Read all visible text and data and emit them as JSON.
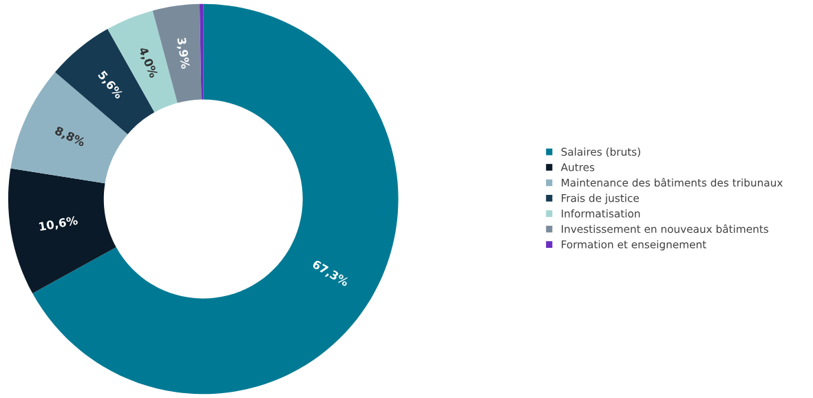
{
  "chart_data": {
    "type": "donut",
    "categories": [
      "Salaires (bruts)",
      "Autres",
      "Maintenance des bâtiments des tribunaux",
      "Frais de justice",
      "Informatisation",
      "Investissement en nouveaux bâtiments",
      "Formation et enseignement"
    ],
    "values": [
      67.3,
      10.6,
      8.8,
      5.6,
      4.0,
      3.9,
      0.3
    ],
    "value_labels": [
      "67,3%",
      "10,6%",
      "8,8%",
      "5,6%",
      "4,0%",
      "3,9%",
      null
    ],
    "colors": [
      "#007a94",
      "#0b1a28",
      "#8fb3c2",
      "#163a52",
      "#a5d5d3",
      "#7a8c9c",
      "#6a2fc0"
    ],
    "legend": "right"
  }
}
